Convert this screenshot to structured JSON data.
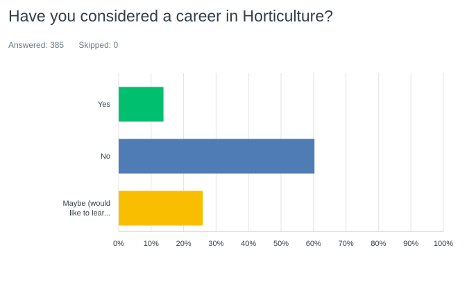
{
  "chart_data": {
    "type": "hbar",
    "title": "Have you considered a career in Horticulture?",
    "answered": "Answered: 385",
    "skipped": "Skipped: 0",
    "categories": [
      "Yes",
      "No",
      "Maybe (would like to lear..."
    ],
    "values": [
      13.8,
      60.3,
      25.9
    ],
    "colors": [
      "#00bf6f",
      "#507cb6",
      "#f9be00"
    ],
    "xlim": [
      0,
      100
    ],
    "xticks": [
      {
        "value": 0,
        "label": "0%"
      },
      {
        "value": 10,
        "label": "10%"
      },
      {
        "value": 20,
        "label": "20%"
      },
      {
        "value": 30,
        "label": "30%"
      },
      {
        "value": 40,
        "label": "40%"
      },
      {
        "value": 50,
        "label": "50%"
      },
      {
        "value": 60,
        "label": "60%"
      },
      {
        "value": 70,
        "label": "70%"
      },
      {
        "value": 80,
        "label": "80%"
      },
      {
        "value": 90,
        "label": "90%"
      },
      {
        "value": 100,
        "label": "100%"
      }
    ],
    "grid": true
  }
}
